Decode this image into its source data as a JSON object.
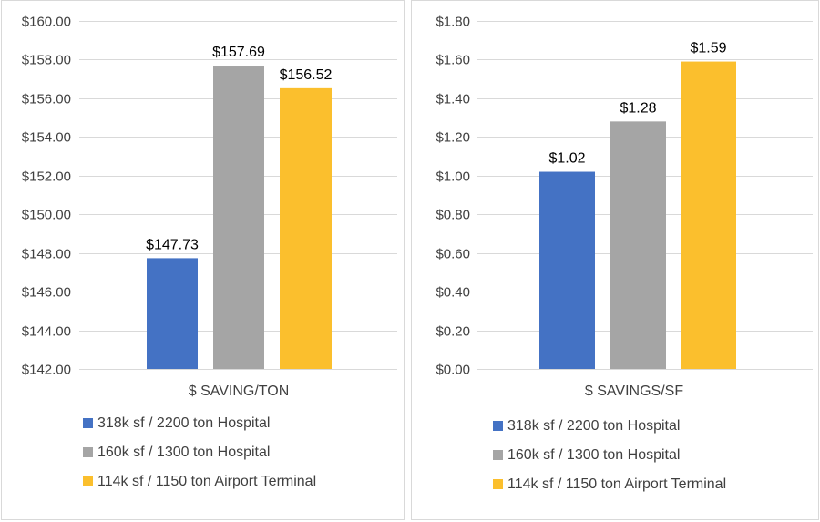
{
  "colors": {
    "series1": "#4472c4",
    "series2": "#a5a5a5",
    "series3": "#fbbf2d",
    "gridline": "#d9d9d9"
  },
  "legend_items": [
    "318k sf / 2200 ton Hospital",
    "160k sf / 1300 ton Hospital",
    "114k sf / 1150 ton Airport Terminal"
  ],
  "chart_data": [
    {
      "type": "bar",
      "categories": [
        "$ SAVING/TON"
      ],
      "xlabel": "$ SAVING/TON",
      "ylim": [
        142,
        160
      ],
      "ytick_step": 2,
      "ytick_labels": [
        "$142.00",
        "$144.00",
        "$146.00",
        "$148.00",
        "$150.00",
        "$152.00",
        "$154.00",
        "$156.00",
        "$158.00",
        "$160.00"
      ],
      "grid": true,
      "legend_position": "bottom",
      "series": [
        {
          "name": "318k sf / 2200 ton Hospital",
          "values": [
            147.73
          ],
          "label": "$147.73"
        },
        {
          "name": "160k sf / 1300 ton Hospital",
          "values": [
            157.69
          ],
          "label": "$157.69"
        },
        {
          "name": "114k sf / 1150 ton Airport Terminal",
          "values": [
            156.52
          ],
          "label": "$156.52"
        }
      ]
    },
    {
      "type": "bar",
      "categories": [
        "$ SAVINGS/SF"
      ],
      "xlabel": "$ SAVINGS/SF",
      "ylim": [
        0,
        1.8
      ],
      "ytick_step": 0.2,
      "ytick_labels": [
        "$0.00",
        "$0.20",
        "$0.40",
        "$0.60",
        "$0.80",
        "$1.00",
        "$1.20",
        "$1.40",
        "$1.60",
        "$1.80"
      ],
      "grid": true,
      "legend_position": "bottom",
      "series": [
        {
          "name": "318k sf / 2200 ton Hospital",
          "values": [
            1.02
          ],
          "label": "$1.02"
        },
        {
          "name": "160k sf / 1300 ton Hospital",
          "values": [
            1.28
          ],
          "label": "$1.28"
        },
        {
          "name": "114k sf / 1150 ton Airport Terminal",
          "values": [
            1.59
          ],
          "label": "$1.59"
        }
      ]
    }
  ]
}
